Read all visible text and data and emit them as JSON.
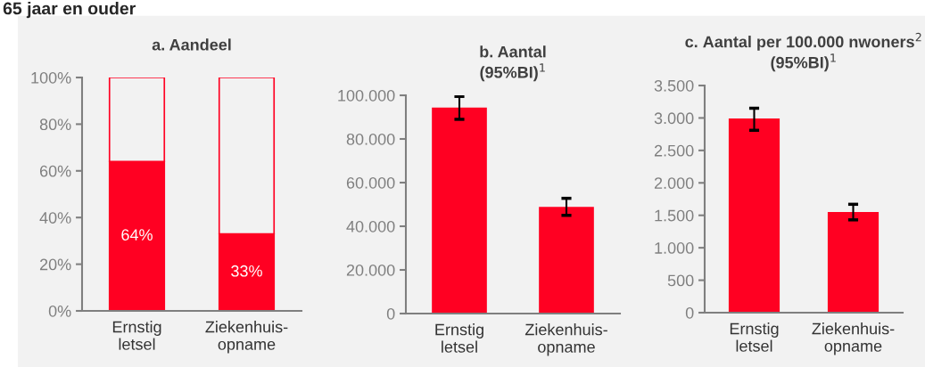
{
  "chart_data": [
    {
      "type": "bar",
      "title": "a. Aandeel",
      "stacked": true,
      "annotations": [
        "65 jaar en ouder"
      ],
      "categories": [
        "Ernstig\nletsel",
        "Ziekenhuis-\nopname"
      ],
      "series": [
        {
          "color": "#ff0022",
          "values": [
            64,
            33
          ],
          "value_labels": [
            "64%",
            "33%"
          ]
        },
        {
          "color": "#f2f2f2",
          "values": [
            36,
            67
          ]
        }
      ],
      "ylim": [
        0,
        100
      ],
      "yticks": [
        {
          "value": 0,
          "label": "0%"
        },
        {
          "value": 20,
          "label": "20%"
        },
        {
          "value": 40,
          "label": "40%"
        },
        {
          "value": 60,
          "label": "60%"
        },
        {
          "value": 80,
          "label": "80%"
        },
        {
          "value": 100,
          "label": "100%"
        }
      ]
    },
    {
      "type": "bar",
      "title": "b. Aantal\n(95%BI)$^{1}$",
      "categories": [
        "Ernstig\nletsel",
        "Ziekenhuis-\nopname"
      ],
      "values": [
        94000,
        48500
      ],
      "color": "#ff0022",
      "errors": [
        [
          89000,
          99500
        ],
        [
          45000,
          52800
        ]
      ],
      "ylim": [
        0,
        100000
      ],
      "yticks": [
        0,
        {
          "value": 20000,
          "label": "20.000"
        },
        {
          "value": 40000,
          "label": "40.000"
        },
        {
          "value": 60000,
          "label": "60.000"
        },
        {
          "value": 80000,
          "label": "80.000"
        },
        {
          "value": 100000,
          "label": "100.000"
        }
      ]
    },
    {
      "type": "bar",
      "title": "c. Aantal per 100.000 nwoners$^{2}$\n(95%BI)$^{1}$",
      "categories": [
        "Ernstig\nletsel",
        "Ziekenhuis-\nopname"
      ],
      "values": [
        2980,
        1540
      ],
      "color": "#ff0022",
      "errors": [
        [
          2810,
          3150
        ],
        [
          1430,
          1670
        ]
      ],
      "ylim": [
        0,
        3500
      ],
      "yticks": [
        0,
        500,
        {
          "value": 1000,
          "label": "1.000"
        },
        {
          "value": 1500,
          "label": "1.500"
        },
        {
          "value": 2000,
          "label": "2.000"
        },
        {
          "value": 2500,
          "label": "2.500"
        },
        {
          "value": 3000,
          "label": "3.000"
        },
        {
          "value": 3500,
          "label": "3.500"
        }
      ]
    }
  ]
}
